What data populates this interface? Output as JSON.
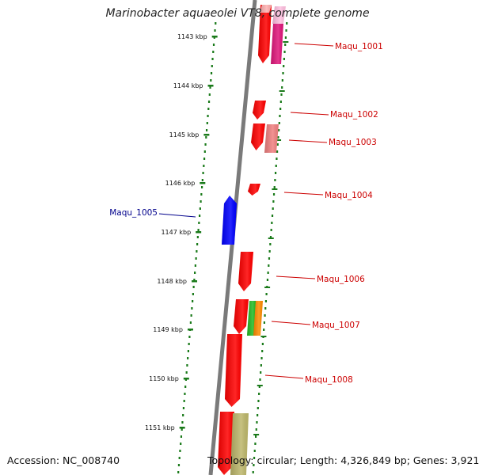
{
  "title": "Marinobacter aquaeolei VT8, complete genome",
  "accession": "Accession: NC_008740",
  "summary": "Topology: circular; Length: 4,326,849 bp; Genes: 3,921",
  "colors": {
    "backbone": "#7a7a7a",
    "tick": "#1a7a1a",
    "forward_label": "#cc0000",
    "reverse_label": "#00008b"
  },
  "ticks": [
    {
      "label": "1143 kbp"
    },
    {
      "label": "1144 kbp"
    },
    {
      "label": "1145 kbp"
    },
    {
      "label": "1146 kbp"
    },
    {
      "label": "1147 kbp"
    },
    {
      "label": "1148 kbp"
    },
    {
      "label": "1149 kbp"
    },
    {
      "label": "1150 kbp"
    },
    {
      "label": "1151 kbp"
    }
  ],
  "gene_labels": [
    {
      "name": "Maqu_1001",
      "strand": "forward"
    },
    {
      "name": "Maqu_1002",
      "strand": "forward"
    },
    {
      "name": "Maqu_1003",
      "strand": "forward"
    },
    {
      "name": "Maqu_1004",
      "strand": "forward"
    },
    {
      "name": "Maqu_1005",
      "strand": "reverse"
    },
    {
      "name": "Maqu_1006",
      "strand": "forward"
    },
    {
      "name": "Maqu_1007",
      "strand": "forward"
    },
    {
      "name": "Maqu_1008",
      "strand": "forward"
    }
  ],
  "features": [
    {
      "name": "gene-1001",
      "color": "#ff0000"
    },
    {
      "name": "gene-1001-top",
      "color": "#ffb0b0"
    },
    {
      "name": "cds-1001",
      "color": "#e0157a"
    },
    {
      "name": "cds-1001-top",
      "color": "#ffc0e0"
    },
    {
      "name": "gene-1002",
      "color": "#ff0000"
    },
    {
      "name": "gene-1003",
      "color": "#ff0000"
    },
    {
      "name": "cds-1003",
      "color": "#f08080"
    },
    {
      "name": "gene-1004",
      "color": "#ff0000"
    },
    {
      "name": "gene-1005",
      "color": "#0000ff"
    },
    {
      "name": "gene-1006",
      "color": "#ff0000"
    },
    {
      "name": "gene-1007",
      "color": "#ff0000"
    },
    {
      "name": "cds-1007-green",
      "color": "#22bb22"
    },
    {
      "name": "cds-1007-orange",
      "color": "#ff8c00"
    },
    {
      "name": "gene-1008",
      "color": "#ff0000"
    },
    {
      "name": "gene-1009",
      "color": "#ff0000"
    },
    {
      "name": "cds-1009",
      "color": "#bdb76b"
    }
  ]
}
